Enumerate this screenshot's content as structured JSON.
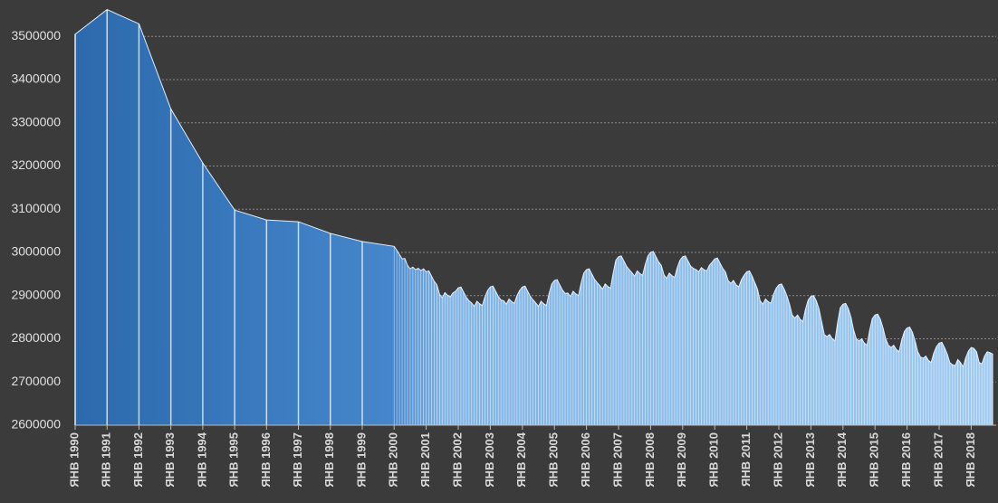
{
  "chart_data": {
    "type": "area",
    "categories": [
      "ЯНВ 1990",
      "ЯНВ 1991",
      "ЯНВ 1992",
      "ЯНВ 1993",
      "ЯНВ 1994",
      "ЯНВ 1995",
      "ЯНВ 1996",
      "ЯНВ 1997",
      "ЯНВ 1998",
      "ЯНВ 1999",
      "ЯНВ 2000",
      null,
      null,
      null,
      null,
      null,
      null,
      null,
      null,
      null,
      null,
      null,
      "ЯНВ 2001",
      null,
      null,
      null,
      null,
      null,
      null,
      null,
      null,
      null,
      null,
      null,
      "ЯНВ 2002",
      null,
      null,
      null,
      null,
      null,
      null,
      null,
      null,
      null,
      null,
      null,
      "ЯНВ 2003",
      null,
      null,
      null,
      null,
      null,
      null,
      null,
      null,
      null,
      null,
      null,
      "ЯНВ 2004",
      null,
      null,
      null,
      null,
      null,
      null,
      null,
      null,
      null,
      null,
      null,
      "ЯНВ 2005",
      null,
      null,
      null,
      null,
      null,
      null,
      null,
      null,
      null,
      null,
      null,
      "ЯНВ 2006",
      null,
      null,
      null,
      null,
      null,
      null,
      null,
      null,
      null,
      null,
      null,
      "ЯНВ 2007",
      null,
      null,
      null,
      null,
      null,
      null,
      null,
      null,
      null,
      null,
      null,
      "ЯНВ 2008",
      null,
      null,
      null,
      null,
      null,
      null,
      null,
      null,
      null,
      null,
      null,
      "ЯНВ 2009",
      null,
      null,
      null,
      null,
      null,
      null,
      null,
      null,
      null,
      null,
      null,
      "ЯНВ 2010",
      null,
      null,
      null,
      null,
      null,
      null,
      null,
      null,
      null,
      null,
      null,
      "ЯНВ 2011",
      null,
      null,
      null,
      null,
      null,
      null,
      null,
      null,
      null,
      null,
      null,
      "ЯНВ 2012",
      null,
      null,
      null,
      null,
      null,
      null,
      null,
      null,
      null,
      null,
      null,
      "ЯНВ 2013",
      null,
      null,
      null,
      null,
      null,
      null,
      null,
      null,
      null,
      null,
      null,
      "ЯНВ 2014",
      null,
      null,
      null,
      null,
      null,
      null,
      null,
      null,
      null,
      null,
      null,
      "ЯНВ 2015",
      null,
      null,
      null,
      null,
      null,
      null,
      null,
      null,
      null,
      null,
      null,
      "ЯНВ 2016",
      null,
      null,
      null,
      null,
      null,
      null,
      null,
      null,
      null,
      null,
      null,
      "ЯНВ 2017",
      null,
      null,
      null,
      null,
      null,
      null,
      null,
      null,
      null,
      null,
      null,
      "ЯНВ 2018",
      null,
      null,
      null,
      null,
      null,
      null,
      null,
      null
    ],
    "values": [
      3505000,
      3562000,
      3529000,
      3332000,
      3207000,
      3098000,
      3075000,
      3071000,
      3044000,
      3025000,
      3014000,
      3005000,
      2995000,
      2985000,
      2986000,
      2970000,
      2962000,
      2966000,
      2960000,
      2963000,
      2958000,
      2962000,
      2955000,
      2957000,
      2945000,
      2933000,
      2925000,
      2903000,
      2895000,
      2907000,
      2901000,
      2897000,
      2906000,
      2910000,
      2918000,
      2920000,
      2908000,
      2896000,
      2888000,
      2883000,
      2875000,
      2887000,
      2881000,
      2877000,
      2897000,
      2912000,
      2920000,
      2922000,
      2910000,
      2898000,
      2890000,
      2888000,
      2880000,
      2892000,
      2886000,
      2882000,
      2900000,
      2912000,
      2920000,
      2922000,
      2910000,
      2898000,
      2890000,
      2883000,
      2875000,
      2887000,
      2881000,
      2877000,
      2905000,
      2927000,
      2935000,
      2937000,
      2925000,
      2913000,
      2905000,
      2906000,
      2898000,
      2910000,
      2904000,
      2900000,
      2929000,
      2952000,
      2960000,
      2962000,
      2950000,
      2938000,
      2930000,
      2923000,
      2915000,
      2927000,
      2921000,
      2917000,
      2952000,
      2982000,
      2990000,
      2992000,
      2980000,
      2968000,
      2960000,
      2953000,
      2945000,
      2957000,
      2951000,
      2947000,
      2972000,
      2992000,
      3000000,
      3002000,
      2990000,
      2978000,
      2970000,
      2948000,
      2940000,
      2952000,
      2946000,
      2942000,
      2965000,
      2982000,
      2990000,
      2992000,
      2980000,
      2968000,
      2963000,
      2960000,
      2955000,
      2965000,
      2960000,
      2957000,
      2970000,
      2977000,
      2985000,
      2987000,
      2975000,
      2963000,
      2955000,
      2935000,
      2928000,
      2935000,
      2925000,
      2920000,
      2937000,
      2947000,
      2955000,
      2957000,
      2945000,
      2930000,
      2915000,
      2888000,
      2880000,
      2892000,
      2886000,
      2882000,
      2903000,
      2917000,
      2925000,
      2927000,
      2915000,
      2900000,
      2880000,
      2855000,
      2848000,
      2855000,
      2845000,
      2840000,
      2869000,
      2890000,
      2898000,
      2900000,
      2888000,
      2870000,
      2840000,
      2810000,
      2805000,
      2810000,
      2800000,
      2795000,
      2837000,
      2872000,
      2880000,
      2882000,
      2870000,
      2850000,
      2820000,
      2800000,
      2795000,
      2800000,
      2790000,
      2785000,
      2820000,
      2847000,
      2855000,
      2857000,
      2845000,
      2825000,
      2800000,
      2785000,
      2780000,
      2785000,
      2775000,
      2770000,
      2797000,
      2817000,
      2825000,
      2827000,
      2815000,
      2795000,
      2770000,
      2758000,
      2755000,
      2760000,
      2750000,
      2745000,
      2767000,
      2782000,
      2790000,
      2792000,
      2780000,
      2765000,
      2745000,
      2740000,
      2738000,
      2752000,
      2745000,
      2735000,
      2757000,
      2772000,
      2780000,
      2778000,
      2770000,
      2745000,
      2742000,
      2760000,
      2770000,
      2768000,
      2765000
    ],
    "ylim": [
      2600000,
      3580000
    ],
    "yticks": [
      2600000,
      2700000,
      2800000,
      2900000,
      3000000,
      3100000,
      3200000,
      3300000,
      3400000,
      3500000
    ],
    "grid": true
  }
}
